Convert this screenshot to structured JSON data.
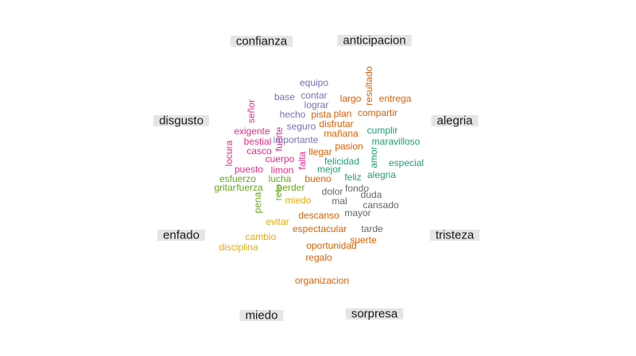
{
  "chart_data": {
    "type": "comparison-wordcloud",
    "colors": {
      "confianza": "#7570b3",
      "anticipacion": "#d95f02",
      "alegria": "#1b9e77",
      "tristeza": "#666666",
      "sorpresa": "#d95f02",
      "miedo": "#e6ab02",
      "enfado": "#66a61e",
      "disgusto": "#e7298a"
    },
    "categories": [
      {
        "key": "confianza",
        "label": "confianza"
      },
      {
        "key": "anticipacion",
        "label": "anticipacion"
      },
      {
        "key": "alegria",
        "label": "alegria"
      },
      {
        "key": "tristeza",
        "label": "tristeza"
      },
      {
        "key": "sorpresa",
        "label": "sorpresa"
      },
      {
        "key": "miedo",
        "label": "miedo"
      },
      {
        "key": "enfado",
        "label": "enfado"
      },
      {
        "key": "disgusto",
        "label": "disgusto"
      }
    ],
    "words": [
      {
        "text": "equipo",
        "cat": "confianza"
      },
      {
        "text": "base",
        "cat": "confianza"
      },
      {
        "text": "contar",
        "cat": "confianza"
      },
      {
        "text": "lograr",
        "cat": "confianza"
      },
      {
        "text": "hecho",
        "cat": "confianza"
      },
      {
        "text": "seguro",
        "cat": "confianza"
      },
      {
        "text": "importante",
        "cat": "confianza"
      },
      {
        "text": "resultado",
        "cat": "anticipacion",
        "vertical": true
      },
      {
        "text": "largo",
        "cat": "anticipacion"
      },
      {
        "text": "entrega",
        "cat": "anticipacion"
      },
      {
        "text": "pista",
        "cat": "anticipacion"
      },
      {
        "text": "plan",
        "cat": "anticipacion"
      },
      {
        "text": "compartir",
        "cat": "anticipacion"
      },
      {
        "text": "disfrutar",
        "cat": "anticipacion"
      },
      {
        "text": "mañana",
        "cat": "anticipacion"
      },
      {
        "text": "pasion",
        "cat": "anticipacion"
      },
      {
        "text": "llegar",
        "cat": "anticipacion"
      },
      {
        "text": "cumplir",
        "cat": "alegria"
      },
      {
        "text": "maravilloso",
        "cat": "alegria"
      },
      {
        "text": "amor",
        "cat": "alegria",
        "vertical": true
      },
      {
        "text": "felicidad",
        "cat": "alegria"
      },
      {
        "text": "especial",
        "cat": "alegria"
      },
      {
        "text": "mejor",
        "cat": "alegria"
      },
      {
        "text": "feliz",
        "cat": "alegria"
      },
      {
        "text": "alegria",
        "cat": "alegria"
      },
      {
        "text": "bueno",
        "cat": "anticipacion"
      },
      {
        "text": "fondo",
        "cat": "tristeza"
      },
      {
        "text": "dolor",
        "cat": "tristeza"
      },
      {
        "text": "duda",
        "cat": "tristeza"
      },
      {
        "text": "mal",
        "cat": "tristeza"
      },
      {
        "text": "cansado",
        "cat": "tristeza"
      },
      {
        "text": "mayor",
        "cat": "tristeza"
      },
      {
        "text": "tarde",
        "cat": "tristeza"
      },
      {
        "text": "descanso",
        "cat": "sorpresa"
      },
      {
        "text": "espectacular",
        "cat": "sorpresa"
      },
      {
        "text": "suerte",
        "cat": "sorpresa"
      },
      {
        "text": "oportunidad",
        "cat": "sorpresa"
      },
      {
        "text": "regalo",
        "cat": "sorpresa"
      },
      {
        "text": "organizacion",
        "cat": "sorpresa"
      },
      {
        "text": "miedo",
        "cat": "miedo"
      },
      {
        "text": "evitar",
        "cat": "miedo"
      },
      {
        "text": "cambio",
        "cat": "miedo"
      },
      {
        "text": "disciplina",
        "cat": "miedo"
      },
      {
        "text": "esfuerzo",
        "cat": "enfado"
      },
      {
        "text": "lucha",
        "cat": "enfado"
      },
      {
        "text": "gritar",
        "cat": "enfado"
      },
      {
        "text": "fuerza",
        "cat": "enfado"
      },
      {
        "text": "perder",
        "cat": "enfado"
      },
      {
        "text": "pena",
        "cat": "enfado",
        "vertical": true
      },
      {
        "text": "reto",
        "cat": "enfado",
        "vertical": true
      },
      {
        "text": "señor",
        "cat": "disgusto",
        "vertical": true
      },
      {
        "text": "exigente",
        "cat": "disgusto"
      },
      {
        "text": "fuerte",
        "cat": "disgusto",
        "vertical": true
      },
      {
        "text": "bestial",
        "cat": "disgusto"
      },
      {
        "text": "locura",
        "cat": "disgusto",
        "vertical": true
      },
      {
        "text": "casco",
        "cat": "disgusto"
      },
      {
        "text": "cuerpo",
        "cat": "disgusto"
      },
      {
        "text": "falta",
        "cat": "disgusto",
        "vertical": true
      },
      {
        "text": "puesto",
        "cat": "disgusto"
      },
      {
        "text": "limon",
        "cat": "disgusto"
      }
    ]
  }
}
